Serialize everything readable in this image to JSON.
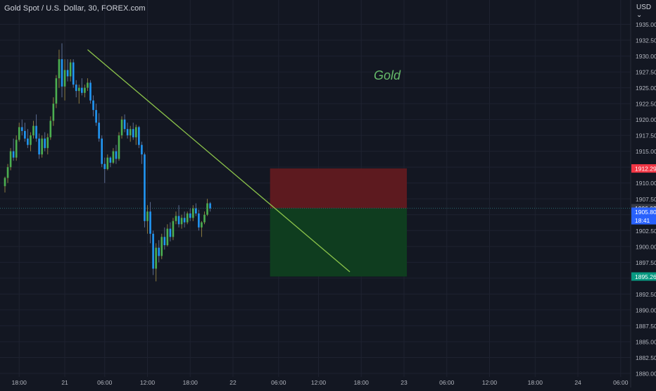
{
  "header": {
    "symbol_title": "Gold Spot / U.S. Dollar, 30, FOREX.com",
    "currency_label": "USD",
    "currency_icon": "chevron-down-icon"
  },
  "colors": {
    "background": "#131722",
    "grid": "#1e2230",
    "up_candle": "#4caf50",
    "down_candle": "#2196f3",
    "trendline": "#8bc34a",
    "annotation_text": "#66bb6a",
    "stop_zone": "#5d1a1f",
    "target_zone": "#0f3d1f",
    "stop_label": "#f23645",
    "target_label": "#089981",
    "current_price_label": "#2962ff",
    "entry_label": "#363a45"
  },
  "chart_data": {
    "type": "candlestick",
    "title": "Gold Spot / U.S. Dollar, 30, FOREX.com",
    "annotation": "Gold",
    "y_axis": {
      "position": "right",
      "range": [
        1880.0,
        1937.5
      ],
      "ticks": [
        "1935.00",
        "1932.50",
        "1930.00",
        "1927.50",
        "1925.00",
        "1922.50",
        "1920.00",
        "1917.50",
        "1915.00",
        "1912.50",
        "1910.00",
        "1907.50",
        "1905.00",
        "1902.50",
        "1900.00",
        "1897.50",
        "1895.00",
        "1892.50",
        "1890.00",
        "1887.50",
        "1885.00",
        "1882.50",
        "1880.00"
      ]
    },
    "x_axis": {
      "ticks": [
        "18:00",
        "21",
        "06:00",
        "12:00",
        "18:00",
        "22",
        "06:00",
        "12:00",
        "18:00",
        "23",
        "06:00",
        "12:00",
        "18:00",
        "24",
        "06:00"
      ]
    },
    "grid": true,
    "price_labels": {
      "stop": "1912.29",
      "entry": "1906.02",
      "current": "1905.80",
      "countdown": "18:41",
      "target": "1895.26"
    },
    "trendline": {
      "start": {
        "bar": 29,
        "price": 1931.0
      },
      "end": {
        "bar": 121,
        "price": 1896.0
      }
    },
    "position": {
      "entry": 1906.02,
      "stop": 1912.29,
      "target": 1895.26,
      "from_bar": 93,
      "to_bar": 141
    },
    "candles": [
      [
        1909.5,
        1911,
        1908.5,
        1910.8
      ],
      [
        1910.8,
        1913,
        1910,
        1912.5
      ],
      [
        1912.5,
        1915.5,
        1912,
        1915
      ],
      [
        1915,
        1917,
        1913.5,
        1914
      ],
      [
        1914,
        1917.5,
        1913.5,
        1916.8
      ],
      [
        1916.8,
        1919.5,
        1916.5,
        1918.8
      ],
      [
        1918.8,
        1920,
        1917.5,
        1918.2
      ],
      [
        1918.2,
        1919.5,
        1916.5,
        1917
      ],
      [
        1917,
        1918.5,
        1915.5,
        1916
      ],
      [
        1916,
        1918,
        1915,
        1917.5
      ],
      [
        1917.5,
        1919.8,
        1917,
        1919
      ],
      [
        1919,
        1920.8,
        1916.5,
        1917
      ],
      [
        1917,
        1917.8,
        1913.8,
        1914.5
      ],
      [
        1914.5,
        1917.5,
        1914,
        1917
      ],
      [
        1917,
        1918,
        1915,
        1915.5
      ],
      [
        1915.5,
        1917.8,
        1914.5,
        1917.2
      ],
      [
        1917.2,
        1920.5,
        1916.8,
        1919.8
      ],
      [
        1919.8,
        1923.5,
        1919,
        1922.5
      ],
      [
        1922.5,
        1927,
        1921.8,
        1926.5
      ],
      [
        1926.5,
        1931,
        1925,
        1929.5
      ],
      [
        1929.5,
        1932,
        1923.5,
        1925.2
      ],
      [
        1925.2,
        1929.5,
        1923,
        1927.8
      ],
      [
        1927.8,
        1929.5,
        1926,
        1926.8
      ],
      [
        1926.8,
        1929.5,
        1926,
        1929
      ],
      [
        1929,
        1929.5,
        1925,
        1925.5
      ],
      [
        1925.5,
        1926.2,
        1923.5,
        1924.5
      ],
      [
        1924.5,
        1925.5,
        1922.5,
        1925
      ],
      [
        1925,
        1926.5,
        1923.8,
        1924.2
      ],
      [
        1924.2,
        1925.5,
        1923.5,
        1925
      ],
      [
        1925,
        1926.5,
        1924.5,
        1925.8
      ],
      [
        1925.8,
        1926.2,
        1922.5,
        1923
      ],
      [
        1923,
        1923.8,
        1920.5,
        1921.5
      ],
      [
        1921.5,
        1922.5,
        1919,
        1919.5
      ],
      [
        1919.5,
        1921,
        1916.5,
        1917
      ],
      [
        1917,
        1917.5,
        1912.5,
        1913
      ],
      [
        1913,
        1914,
        1910,
        1912.2
      ],
      [
        1912.2,
        1914.5,
        1912,
        1914
      ],
      [
        1914,
        1914.2,
        1912.5,
        1913.2
      ],
      [
        1913.2,
        1915.5,
        1913,
        1915
      ],
      [
        1915,
        1916,
        1913,
        1913.8
      ],
      [
        1913.8,
        1918,
        1913.5,
        1917.5
      ],
      [
        1917.5,
        1920.5,
        1917,
        1920
      ],
      [
        1920,
        1920.8,
        1918,
        1918.5
      ],
      [
        1918.5,
        1919.5,
        1917,
        1917.5
      ],
      [
        1917.5,
        1919,
        1916.5,
        1918.5
      ],
      [
        1918.5,
        1919.5,
        1916.8,
        1917.2
      ],
      [
        1917.2,
        1919.2,
        1916,
        1918.8
      ],
      [
        1918.8,
        1919,
        1915.5,
        1916
      ],
      [
        1916,
        1916.5,
        1913,
        1914.5
      ],
      [
        1914.5,
        1914.8,
        1903,
        1904
      ],
      [
        1904,
        1906.5,
        1902,
        1905.5
      ],
      [
        1905.5,
        1907,
        1900.5,
        1902
      ],
      [
        1902,
        1902.5,
        1895.5,
        1896.5
      ],
      [
        1896.5,
        1900.5,
        1894.5,
        1899.8
      ],
      [
        1899.8,
        1901,
        1897.5,
        1898.5
      ],
      [
        1898.5,
        1902,
        1898,
        1901.5
      ],
      [
        1901.5,
        1903,
        1899.5,
        1900.2
      ],
      [
        1900.2,
        1903.5,
        1900,
        1902.8
      ],
      [
        1902.8,
        1903.8,
        1900.8,
        1901.5
      ],
      [
        1901.5,
        1904.5,
        1901,
        1904
      ],
      [
        1904,
        1905.5,
        1903.5,
        1904.8
      ],
      [
        1904.8,
        1906.5,
        1903,
        1903.5
      ],
      [
        1903.5,
        1905,
        1902.8,
        1904.5
      ],
      [
        1904.5,
        1905.5,
        1903,
        1903.8
      ],
      [
        1903.8,
        1905.5,
        1903.5,
        1905.2
      ],
      [
        1905.2,
        1906,
        1904,
        1904.5
      ],
      [
        1904.5,
        1906.5,
        1904,
        1906
      ],
      [
        1906,
        1906.8,
        1904.8,
        1905.2
      ],
      [
        1905.2,
        1905.8,
        1902.5,
        1903
      ],
      [
        1903,
        1904,
        1901.5,
        1903.8
      ],
      [
        1903.8,
        1905.5,
        1903.5,
        1905
      ],
      [
        1905,
        1907.5,
        1904.8,
        1906.8
      ],
      [
        1906.8,
        1907,
        1905.5,
        1906
      ]
    ]
  }
}
